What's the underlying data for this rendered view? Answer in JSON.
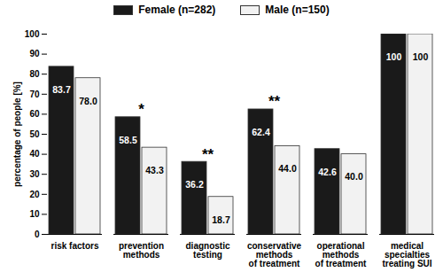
{
  "chart_data": {
    "type": "bar",
    "categories": [
      "risk factors",
      "prevention\nmethods",
      "diagnostic\ntesting",
      "conservative\nmethods\nof treatment",
      "operational\nmethods\nof treatment",
      "medical\nspecialties\ntreating SUI"
    ],
    "series": [
      {
        "name": "Female (n=282)",
        "color": "#1a1a1a",
        "values": [
          83.7,
          58.5,
          36.2,
          62.4,
          42.6,
          100
        ],
        "value_labels": [
          "83.7",
          "58.5",
          "36.2",
          "62.4",
          "42.6",
          "100"
        ]
      },
      {
        "name": "Male (n=150)",
        "color": "#f2f2f2",
        "values": [
          78.0,
          43.3,
          18.7,
          44.0,
          40.0,
          100
        ],
        "value_labels": [
          "78.0",
          "43.3",
          "18.7",
          "44.0",
          "40.0",
          "100"
        ]
      }
    ],
    "y_label": "percentage of people [%]",
    "ylim": [
      0,
      100
    ],
    "yticks": [
      0,
      10,
      20,
      30,
      40,
      50,
      60,
      70,
      80,
      90,
      100
    ],
    "grid": false,
    "legend": "top",
    "data_labels": true,
    "annotations": [
      {
        "category": "prevention\nmethods",
        "text": "*"
      },
      {
        "category": "diagnostic\ntesting",
        "text": "**"
      },
      {
        "category": "conservative\nmethods\nof treatment",
        "text": "**"
      }
    ]
  }
}
